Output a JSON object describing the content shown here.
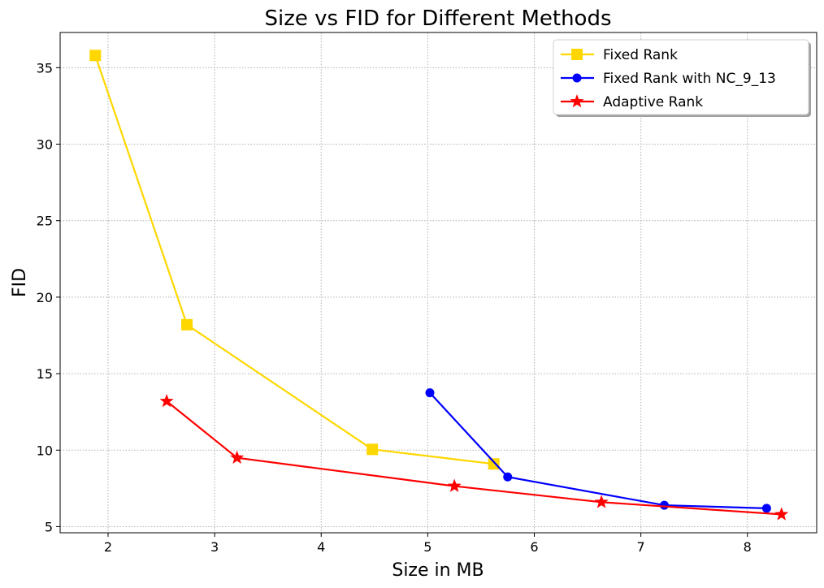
{
  "chart_data": {
    "type": "line",
    "title": "Size vs FID for Different Methods",
    "xlabel": "Size in MB",
    "ylabel": "FID",
    "xlim": [
      1.55,
      8.65
    ],
    "ylim": [
      4.6,
      37.3
    ],
    "xticks": [
      2,
      3,
      4,
      5,
      6,
      7,
      8
    ],
    "yticks": [
      5,
      10,
      15,
      20,
      25,
      30,
      35
    ],
    "grid": true,
    "legend_position": "top-right",
    "series": [
      {
        "name": "Fixed Rank",
        "color": "#FFD700",
        "marker": "square",
        "points": [
          [
            1.88,
            35.8
          ],
          [
            2.74,
            18.2
          ],
          [
            4.48,
            10.05
          ],
          [
            5.62,
            9.1
          ]
        ]
      },
      {
        "name": "Fixed Rank with NC_9_13",
        "color": "#0000FF",
        "marker": "circle",
        "points": [
          [
            5.02,
            13.75
          ],
          [
            5.75,
            8.25
          ],
          [
            7.22,
            6.4
          ],
          [
            8.18,
            6.2
          ]
        ]
      },
      {
        "name": "Adaptive Rank",
        "color": "#FF0000",
        "marker": "star",
        "points": [
          [
            2.55,
            13.2
          ],
          [
            3.21,
            9.5
          ],
          [
            5.25,
            7.65
          ],
          [
            6.63,
            6.6
          ],
          [
            8.32,
            5.8
          ]
        ]
      }
    ]
  }
}
